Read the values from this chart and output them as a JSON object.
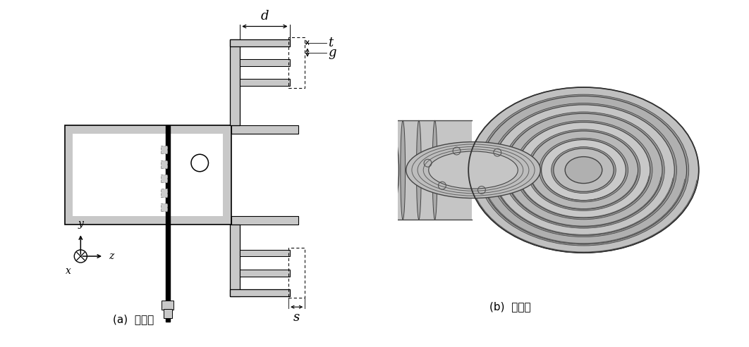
{
  "bg_color": "#ffffff",
  "lgray": "#c8c8c8",
  "mgray": "#a8a8a8",
  "dgray": "#888888",
  "vdgray": "#606060",
  "white": "#ffffff",
  "black": "#000000",
  "label_a": "(a)  단면도",
  "label_b": "(b)  입체도",
  "dim_d": "d",
  "dim_t": "t",
  "dim_g": "g",
  "dim_s": "s",
  "label_fontsize": 11,
  "dim_fontsize": 13,
  "axis_fontsize": 10
}
